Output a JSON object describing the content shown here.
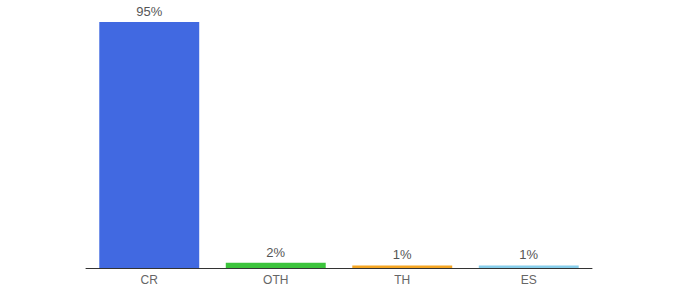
{
  "chart_data": {
    "type": "bar",
    "categories": [
      "CR",
      "OTH",
      "TH",
      "ES"
    ],
    "values": [
      95,
      2,
      1,
      1
    ],
    "value_labels": [
      "95%",
      "2%",
      "1%",
      "1%"
    ],
    "colors": [
      "#4169e1",
      "#3cc43c",
      "#f5a623",
      "#87ceeb"
    ],
    "ylim": [
      0,
      95
    ],
    "grid": false,
    "data_labels": true,
    "tick_labels": "x"
  }
}
